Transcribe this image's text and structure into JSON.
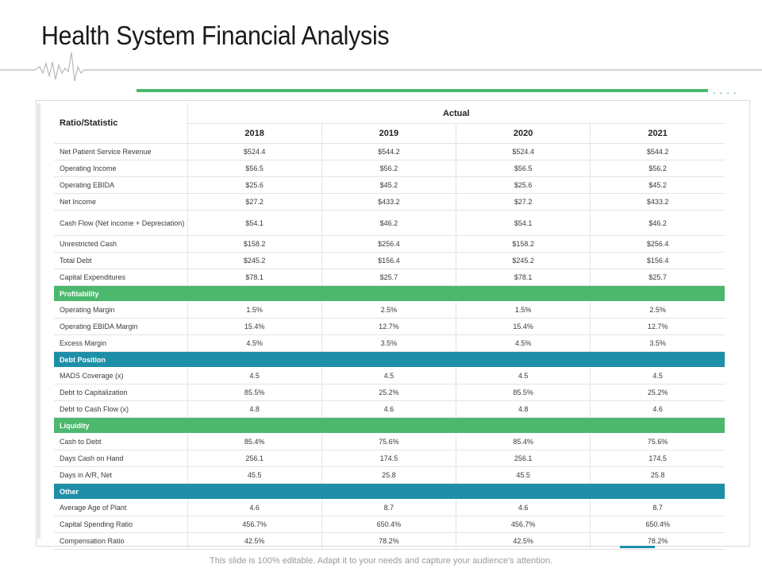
{
  "title": "Health System Financial Analysis",
  "colors": {
    "accent_green": "#4cb86e",
    "accent_teal": "#1f8fa8",
    "dots": "#2a90a8"
  },
  "dots_text": "....",
  "table": {
    "row_header": "Ratio/Statistic",
    "group_header": "Actual",
    "years": [
      "2018",
      "2019",
      "2020",
      "2021"
    ],
    "rows": [
      {
        "label": "Net Patient Service Revenue",
        "values": [
          "$524.4",
          "$544.2",
          "$524.4",
          "$544.2"
        ]
      },
      {
        "label": "Operating Income",
        "values": [
          "$56.5",
          "$56.2",
          "$56.5",
          "$56.2"
        ]
      },
      {
        "label": "Operating EBIDA",
        "values": [
          "$25.6",
          "$45.2",
          "$25.6",
          "$45.2"
        ]
      },
      {
        "label": "Net Income",
        "values": [
          "$27.2",
          "$433.2",
          "$27.2",
          "$433.2"
        ]
      },
      {
        "label": "Cash Flow (Net income + Depreciation)",
        "values": [
          "$54.1",
          "$46.2",
          "$54.1",
          "$46.2"
        ]
      },
      {
        "label": "Unrestricted Cash",
        "values": [
          "$158.2",
          "$256.4",
          "$158.2",
          "$256.4"
        ]
      },
      {
        "label": "Total Debt",
        "values": [
          "$245.2",
          "$156.4",
          "$245.2",
          "$156.4"
        ]
      },
      {
        "label": "Capital Expenditures",
        "values": [
          "$78.1",
          "$25.7",
          "$78.1",
          "$25.7"
        ]
      }
    ],
    "sections": [
      {
        "name": "Profitability",
        "color": "green",
        "rows": [
          {
            "label": "Operating Margin",
            "values": [
              "1.5%",
              "2.5%",
              "1.5%",
              "2.5%"
            ]
          },
          {
            "label": "Operating EBIDA Margin",
            "values": [
              "15.4%",
              "12.7%",
              "15.4%",
              "12.7%"
            ]
          },
          {
            "label": "Excess Margin",
            "values": [
              "4.5%",
              "3.5%",
              "4.5%",
              "3.5%"
            ]
          }
        ]
      },
      {
        "name": "Debt Position",
        "color": "teal",
        "rows": [
          {
            "label": "MADS Coverage (x)",
            "values": [
              "4.5",
              "4.5",
              "4.5",
              "4.5"
            ]
          },
          {
            "label": "Debt to Capitalization",
            "values": [
              "85.5%",
              "25.2%",
              "85.5%",
              "25.2%"
            ]
          },
          {
            "label": "Debt to Cash Flow (x)",
            "values": [
              "4.8",
              "4.6",
              "4.8",
              "4.6"
            ]
          }
        ]
      },
      {
        "name": "Liquidity",
        "color": "green",
        "rows": [
          {
            "label": "Cash to Debt",
            "values": [
              "85.4%",
              "75.6%",
              "85.4%",
              "75.6%"
            ]
          },
          {
            "label": "Days Cash on Hand",
            "values": [
              "256.1",
              "174.5",
              "256.1",
              "174.5"
            ]
          },
          {
            "label": "Days in A/R, Net",
            "values": [
              "45.5",
              "25.8",
              "45.5",
              "25.8"
            ]
          }
        ]
      },
      {
        "name": "Other",
        "color": "teal",
        "rows": [
          {
            "label": "Average Age of Plant",
            "values": [
              "4.6",
              "8.7",
              "4.6",
              "8.7"
            ]
          },
          {
            "label": "Capital Spending Ratio",
            "values": [
              "456.7%",
              "650.4%",
              "456.7%",
              "650.4%"
            ]
          },
          {
            "label": "Compensation Ratio",
            "values": [
              "42.5%",
              "78.2%",
              "42.5%",
              "78.2%"
            ]
          }
        ]
      }
    ]
  },
  "footer": "This slide is 100% editable. Adapt it to your needs and capture your audience's attention."
}
